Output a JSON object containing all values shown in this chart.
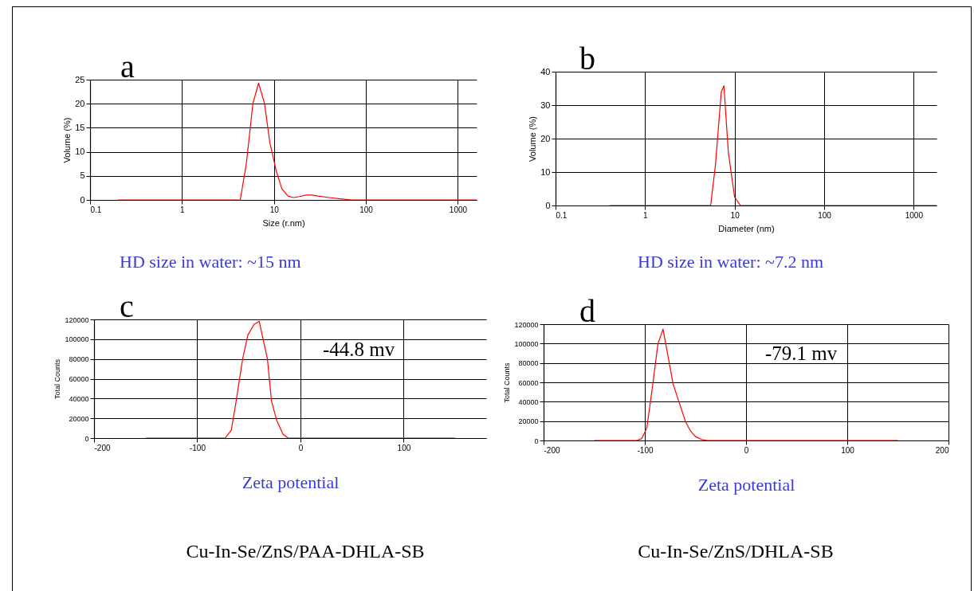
{
  "chart_data": [
    {
      "type": "line",
      "xlabel": "Size (r.nm)",
      "ylabel": "Volume (%)",
      "log": "x",
      "grid": true,
      "color": "#ff0000",
      "xlim": [
        0.1,
        1600
      ],
      "xticks": [
        0.1,
        1,
        10,
        100,
        1000
      ],
      "ylim": [
        0,
        25
      ],
      "yticks": [
        0,
        5,
        10,
        15,
        20,
        25
      ],
      "x": [
        0.2,
        4.3,
        5,
        5.9,
        6.8,
        7.9,
        9,
        10.6,
        12.2,
        14.2,
        16.3,
        19,
        22.3,
        25.6,
        30,
        40,
        55,
        70,
        1600
      ],
      "values": [
        0,
        0,
        7.5,
        20,
        24.3,
        20,
        12,
        6,
        2.3,
        0.8,
        0.5,
        0.7,
        1,
        1,
        0.8,
        0.5,
        0.2,
        0,
        0
      ],
      "annotations": [
        "a",
        "HD size in water: ~15 nm"
      ]
    },
    {
      "type": "line",
      "xlabel": "Diameter (nm)",
      "ylabel": "Volume (%)",
      "log": "x",
      "grid": true,
      "color": "#ff0000",
      "xlim": [
        0.1,
        1800
      ],
      "xticks": [
        0.1,
        1,
        10,
        100,
        1000
      ],
      "ylim": [
        0,
        40
      ],
      "yticks": [
        0,
        10,
        20,
        30,
        40
      ],
      "x": [
        0.4,
        5.4,
        6.1,
        7.1,
        7.6,
        8.5,
        10,
        11.6,
        1800
      ],
      "values": [
        0,
        0,
        12,
        34,
        35.8,
        16,
        2.5,
        0,
        0
      ],
      "annotations": [
        "b",
        "HD size in water: ~7.2 nm"
      ]
    },
    {
      "type": "line",
      "xlabel": "Zeta potential",
      "ylabel": "Total Counts",
      "grid": true,
      "color": "#ff0000",
      "xlim": [
        -200,
        180
      ],
      "xticks": [
        -200,
        -100,
        0,
        100
      ],
      "ylim": [
        0,
        120000
      ],
      "yticks": [
        0,
        20000,
        40000,
        60000,
        80000,
        100000,
        120000
      ],
      "x": [
        -150,
        -73,
        -67,
        -63,
        -56,
        -51,
        -45,
        -40,
        -32,
        -28,
        -23,
        -17,
        -12,
        150
      ],
      "values": [
        0,
        0,
        8000,
        33000,
        80000,
        104000,
        115000,
        118000,
        80000,
        37000,
        18000,
        4000,
        0,
        0
      ],
      "annotations": [
        "c",
        "-44.8 mv",
        "Cu-In-Se/ZnS/PAA-DHLA-SB"
      ]
    },
    {
      "type": "line",
      "xlabel": "Zeta potential",
      "ylabel": "Total Counts",
      "grid": true,
      "color": "#ff0000",
      "xlim": [
        -200,
        200
      ],
      "xticks": [
        -200,
        -100,
        0,
        100,
        200
      ],
      "ylim": [
        0,
        120000
      ],
      "yticks": [
        0,
        20000,
        40000,
        60000,
        80000,
        100000,
        120000
      ],
      "x": [
        -150,
        -108,
        -103,
        -98,
        -93,
        -87,
        -82,
        -72,
        -60,
        -55,
        -50,
        -44,
        -38,
        150
      ],
      "values": [
        0,
        0,
        2000,
        13000,
        51000,
        100000,
        115000,
        58000,
        20000,
        10000,
        4000,
        1000,
        0,
        0
      ],
      "annotations": [
        "d",
        "-79.1 mv",
        "Cu-In-Se/ZnS/DHLA-SB"
      ]
    }
  ]
}
